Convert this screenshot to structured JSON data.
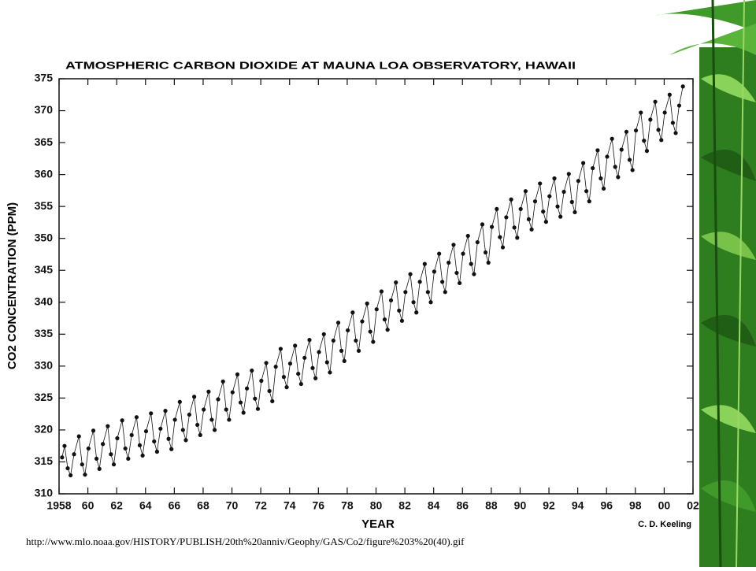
{
  "chart_data": {
    "type": "line",
    "title": "ATMOSPHERIC CARBON DIOXIDE AT MAUNA LOA OBSERVATORY, HAWAII",
    "x_label": "YEAR",
    "y_label": "CO2 CONCENTRATION (PPM)",
    "annotation": "C. D. Keeling",
    "color": "#111111",
    "xlim": [
      1958,
      2002
    ],
    "ylim": [
      310,
      375
    ],
    "xticks": [
      1958,
      {
        "value": 1960,
        "label": "60"
      },
      {
        "value": 1962,
        "label": "62"
      },
      {
        "value": 1964,
        "label": "64"
      },
      {
        "value": 1966,
        "label": "66"
      },
      {
        "value": 1968,
        "label": "68"
      },
      {
        "value": 1970,
        "label": "70"
      },
      {
        "value": 1972,
        "label": "72"
      },
      {
        "value": 1974,
        "label": "74"
      },
      {
        "value": 1976,
        "label": "76"
      },
      {
        "value": 1978,
        "label": "78"
      },
      {
        "value": 1980,
        "label": "80"
      },
      {
        "value": 1982,
        "label": "82"
      },
      {
        "value": 1984,
        "label": "84"
      },
      {
        "value": 1986,
        "label": "86"
      },
      {
        "value": 1988,
        "label": "88"
      },
      {
        "value": 1990,
        "label": "90"
      },
      {
        "value": 1992,
        "label": "92"
      },
      {
        "value": 1994,
        "label": "94"
      },
      {
        "value": 1996,
        "label": "96"
      },
      {
        "value": 1998,
        "label": "98"
      },
      {
        "value": 2000,
        "label": "00"
      },
      {
        "value": 2002,
        "label": "02"
      }
    ],
    "yticks": [
      310,
      315,
      320,
      325,
      330,
      335,
      340,
      345,
      350,
      355,
      360,
      365,
      370,
      375
    ],
    "x": [
      1958.21,
      1958.38,
      1958.6,
      1958.8,
      1959.04,
      1959.38,
      1959.6,
      1959.8,
      1960.04,
      1960.38,
      1960.6,
      1960.8,
      1961.04,
      1961.38,
      1961.6,
      1961.8,
      1962.04,
      1962.38,
      1962.6,
      1962.8,
      1963.04,
      1963.38,
      1963.6,
      1963.8,
      1964.04,
      1964.38,
      1964.6,
      1964.8,
      1965.04,
      1965.38,
      1965.6,
      1965.8,
      1966.04,
      1966.38,
      1966.6,
      1966.8,
      1967.04,
      1967.38,
      1967.6,
      1967.8,
      1968.04,
      1968.38,
      1968.6,
      1968.8,
      1969.04,
      1969.38,
      1969.6,
      1969.8,
      1970.04,
      1970.38,
      1970.6,
      1970.8,
      1971.04,
      1971.38,
      1971.6,
      1971.8,
      1972.04,
      1972.38,
      1972.6,
      1972.8,
      1973.04,
      1973.38,
      1973.6,
      1973.8,
      1974.04,
      1974.38,
      1974.6,
      1974.8,
      1975.04,
      1975.38,
      1975.6,
      1975.8,
      1976.04,
      1976.38,
      1976.6,
      1976.8,
      1977.04,
      1977.38,
      1977.6,
      1977.8,
      1978.04,
      1978.38,
      1978.6,
      1978.8,
      1979.04,
      1979.38,
      1979.6,
      1979.8,
      1980.04,
      1980.38,
      1980.6,
      1980.8,
      1981.04,
      1981.38,
      1981.6,
      1981.8,
      1982.04,
      1982.38,
      1982.6,
      1982.8,
      1983.04,
      1983.38,
      1983.6,
      1983.8,
      1984.04,
      1984.38,
      1984.6,
      1984.8,
      1985.04,
      1985.38,
      1985.6,
      1985.8,
      1986.04,
      1986.38,
      1986.6,
      1986.8,
      1987.04,
      1987.38,
      1987.6,
      1987.8,
      1988.04,
      1988.38,
      1988.6,
      1988.8,
      1989.04,
      1989.38,
      1989.6,
      1989.8,
      1990.04,
      1990.38,
      1990.6,
      1990.8,
      1991.04,
      1991.38,
      1991.6,
      1991.8,
      1992.04,
      1992.38,
      1992.6,
      1992.8,
      1993.04,
      1993.38,
      1993.6,
      1993.8,
      1994.04,
      1994.38,
      1994.6,
      1994.8,
      1995.04,
      1995.38,
      1995.6,
      1995.8,
      1996.04,
      1996.38,
      1996.6,
      1996.8,
      1997.04,
      1997.38,
      1997.6,
      1997.8,
      1998.04,
      1998.38,
      1998.6,
      1998.8,
      1999.04,
      1999.38,
      1999.6,
      1999.8,
      2000.04,
      2000.38,
      2000.6,
      2000.8,
      2001.04,
      2001.3
    ],
    "values": [
      315.7,
      317.5,
      314.0,
      312.9,
      316.2,
      319.0,
      314.6,
      313.0,
      317.1,
      319.9,
      315.5,
      313.9,
      317.8,
      320.6,
      316.2,
      314.6,
      318.7,
      321.5,
      317.1,
      315.5,
      319.2,
      322.0,
      317.6,
      316.0,
      319.8,
      322.6,
      318.2,
      316.6,
      320.2,
      323.0,
      318.6,
      317.0,
      321.6,
      324.4,
      320.0,
      318.4,
      322.4,
      325.2,
      320.8,
      319.2,
      323.2,
      326.0,
      321.6,
      320.0,
      324.8,
      327.6,
      323.2,
      321.6,
      325.9,
      328.7,
      324.3,
      322.7,
      326.5,
      329.3,
      324.9,
      323.3,
      327.7,
      330.5,
      326.1,
      324.5,
      329.9,
      332.7,
      328.3,
      326.7,
      330.4,
      333.2,
      328.8,
      327.2,
      331.3,
      334.1,
      329.7,
      328.1,
      332.2,
      335.0,
      330.6,
      329.0,
      334.0,
      336.8,
      332.4,
      330.8,
      335.6,
      338.4,
      334.0,
      332.4,
      337.0,
      339.8,
      335.4,
      333.8,
      338.9,
      341.7,
      337.3,
      335.7,
      340.3,
      343.1,
      338.7,
      337.1,
      341.6,
      344.4,
      340.0,
      338.4,
      343.2,
      346.0,
      341.6,
      340.0,
      344.8,
      347.6,
      343.2,
      341.6,
      346.2,
      349.0,
      344.6,
      343.0,
      347.6,
      350.4,
      346.0,
      344.4,
      349.4,
      352.2,
      347.8,
      346.2,
      351.8,
      354.6,
      350.2,
      348.6,
      353.3,
      356.1,
      351.7,
      350.1,
      354.6,
      357.4,
      353.0,
      351.4,
      355.8,
      358.6,
      354.2,
      352.6,
      356.6,
      359.4,
      355.0,
      353.4,
      357.3,
      360.1,
      355.7,
      354.1,
      359.0,
      361.8,
      357.4,
      355.8,
      361.0,
      363.8,
      359.4,
      357.8,
      362.8,
      365.6,
      361.2,
      359.6,
      363.9,
      366.7,
      362.3,
      360.7,
      366.9,
      369.7,
      365.3,
      363.7,
      368.6,
      371.4,
      367.0,
      365.4,
      369.7,
      372.5,
      368.1,
      366.5,
      370.8,
      373.8
    ]
  },
  "source_url": "http://www.mlo.noaa.gov/HISTORY/PUBLISH/20th%20anniv/Geophy/GAS/Co2/figure%203%20(40).gif"
}
